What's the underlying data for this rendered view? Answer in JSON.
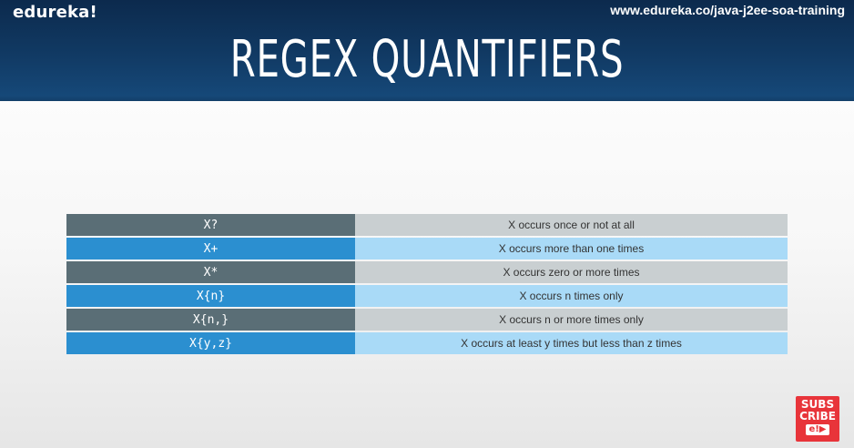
{
  "header": {
    "logo": "edureka!",
    "url": "www.edureka.co/java-j2ee-soa-training",
    "title": "REGEX QUANTIFIERS"
  },
  "table": {
    "rows": [
      {
        "quantifier": "X?",
        "description": "X occurs once or not at all"
      },
      {
        "quantifier": "X+",
        "description": "X occurs more than one times"
      },
      {
        "quantifier": "X*",
        "description": "X occurs zero or more times"
      },
      {
        "quantifier": "X{n}",
        "description": "X occurs n times only"
      },
      {
        "quantifier": "X{n,}",
        "description": "X occurs n or more times only"
      },
      {
        "quantifier": "X{y,z}",
        "description": "X occurs at least y times but less than z times"
      }
    ]
  },
  "subscribe": {
    "line1": "SUBS",
    "line2": "CRIBE",
    "badge": "e!▶"
  },
  "colors": {
    "header": "#113a64",
    "row_dark_left": "#5a6e76",
    "row_dark_right": "#c9cfd1",
    "row_blue_left": "#2b8fd0",
    "row_blue_right": "#a9daf7",
    "subscribe": "#e8343a"
  }
}
